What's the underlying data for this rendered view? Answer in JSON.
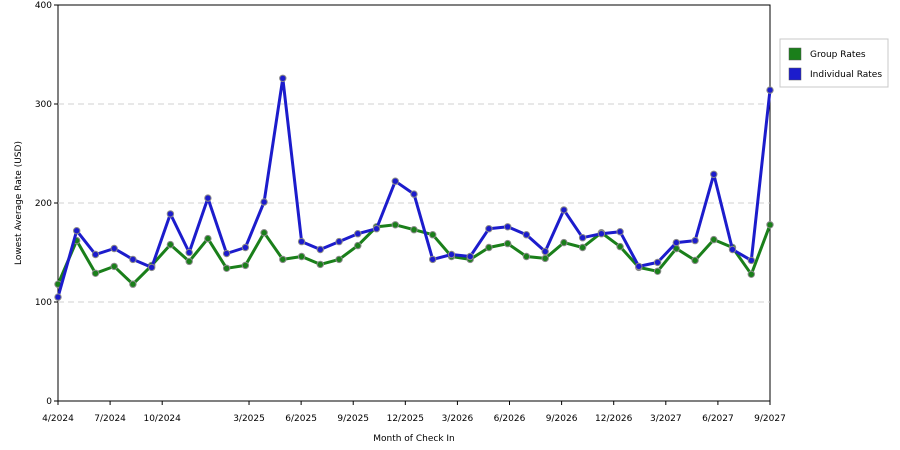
{
  "chart_data": {
    "type": "line",
    "xlabel": "Month of Check In",
    "ylabel": "Lowest Average Rate (USD)",
    "ylim": [
      0,
      400
    ],
    "yticks": [
      0,
      100,
      200,
      300,
      400
    ],
    "x_start": "4/2024",
    "x_end": "9/2027",
    "x_tick_labels": [
      "4/2024",
      "7/2024",
      "10/2024",
      "3/2025",
      "6/2025",
      "9/2025",
      "12/2025",
      "3/2026",
      "6/2026",
      "9/2026",
      "12/2026",
      "3/2027",
      "6/2027",
      "9/2027"
    ],
    "x_tick_dates": [
      "2024-04",
      "2024-07",
      "2024-10",
      "2025-03",
      "2025-06",
      "2025-09",
      "2025-12",
      "2026-03",
      "2026-06",
      "2026-09",
      "2026-12",
      "2027-03",
      "2027-06",
      "2027-09"
    ],
    "grid": "horizontal dashed",
    "legend_position": "top-right",
    "series": [
      {
        "name": "Group Rates",
        "color": "#1a7f1a",
        "values": [
          118,
          162,
          129,
          136,
          118,
          137,
          158,
          141,
          164,
          134,
          137,
          170,
          143,
          146,
          138,
          143,
          157,
          176,
          178,
          173,
          168,
          146,
          143,
          155,
          159,
          146,
          144,
          160,
          155,
          170,
          156,
          135,
          131,
          154,
          142,
          163,
          155,
          128,
          178
        ]
      },
      {
        "name": "Individual Rates",
        "color": "#1c1ccc",
        "values": [
          105,
          172,
          148,
          154,
          143,
          135,
          189,
          150,
          205,
          149,
          155,
          201,
          326,
          161,
          153,
          161,
          169,
          174,
          222,
          209,
          143,
          148,
          146,
          174,
          176,
          168,
          151,
          193,
          165,
          169,
          171,
          136,
          140,
          160,
          162,
          229,
          153,
          142,
          314
        ]
      }
    ]
  }
}
